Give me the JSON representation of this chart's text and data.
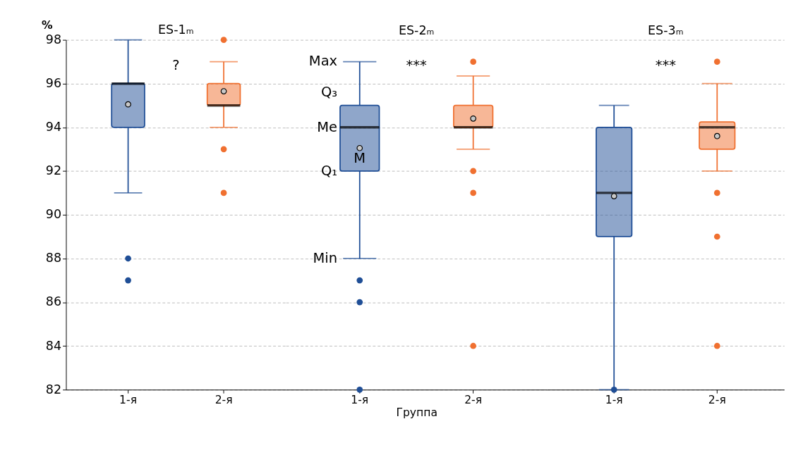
{
  "chart_data": [
    {
      "type": "box",
      "title": "ES-1ₘ",
      "ylabel": "%",
      "categories": [
        "1-я",
        "2-я"
      ],
      "colors": [
        "#1f4e96",
        "#f07030"
      ],
      "ylim": [
        82,
        98
      ],
      "yticks": [
        82,
        84,
        86,
        88,
        90,
        92,
        94,
        96,
        98
      ],
      "grid": "y",
      "boxes": [
        {
          "low": 91,
          "q1": 94,
          "median": 96,
          "q3": 96,
          "high": 98,
          "mean": 95.05,
          "outliers": [
            88,
            87
          ]
        },
        {
          "low": 94,
          "q1": 95,
          "median": 95,
          "q3": 96,
          "high": 97,
          "mean": 95.65,
          "outliers": [
            98,
            93,
            91
          ]
        }
      ],
      "annotations": [
        "?"
      ]
    },
    {
      "type": "box",
      "title": "ES-2ₘ",
      "xlabel": "Группа",
      "categories": [
        "1-я",
        "2-я"
      ],
      "colors": [
        "#1f4e96",
        "#f07030"
      ],
      "ylim": [
        82,
        98
      ],
      "yticks": [
        82,
        84,
        86,
        88,
        90,
        92,
        94,
        96,
        98
      ],
      "grid": "y",
      "tick_labels": "x",
      "boxes": [
        {
          "low": 88,
          "q1": 92,
          "median": 94,
          "q3": 95,
          "high": 97,
          "mean": 93.05,
          "outliers": [
            87,
            86,
            82
          ]
        },
        {
          "low": 93,
          "q1": 94,
          "median": 94,
          "q3": 95,
          "high": 96.35,
          "mean": 94.4,
          "outliers": [
            97,
            92,
            91,
            84
          ]
        }
      ],
      "annotations": [
        "***",
        {
          "text": "Max",
          "x": "1-я",
          "y": 97
        },
        {
          "text": "Q₃",
          "x": "1-я",
          "y": 95.6
        },
        {
          "text": "Me",
          "x": "1-я",
          "y": 94
        },
        "M",
        {
          "text": "Q₁",
          "x": "1-я",
          "y": 92
        },
        {
          "text": "Min",
          "x": "1-я",
          "y": 88
        }
      ]
    },
    {
      "type": "box",
      "title": "ES-3ₘ",
      "categories": [
        "1-я",
        "2-я"
      ],
      "colors": [
        "#1f4e96",
        "#f07030"
      ],
      "ylim": [
        82,
        98
      ],
      "yticks": [
        82,
        84,
        86,
        88,
        90,
        92,
        94,
        96,
        98
      ],
      "grid": "y",
      "tick_labels": "x",
      "boxes": [
        {
          "low": 82,
          "q1": 89,
          "median": 91,
          "q3": 94,
          "high": 95,
          "mean": 90.85,
          "outliers": [
            82
          ]
        },
        {
          "low": 92,
          "q1": 93,
          "median": 94,
          "q3": 94.25,
          "high": 96,
          "mean": 93.6,
          "outliers": [
            97,
            91,
            89,
            84
          ]
        }
      ],
      "annotations": [
        "***"
      ]
    }
  ]
}
